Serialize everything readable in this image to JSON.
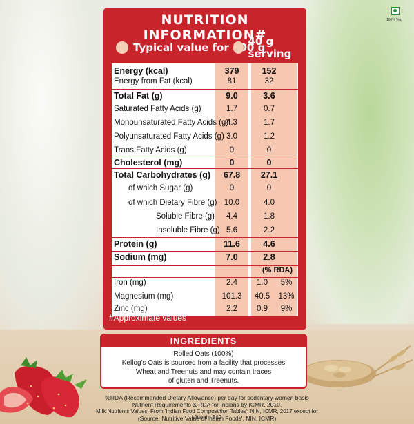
{
  "badge": {
    "veg_label": "100% Veg"
  },
  "panel": {
    "title": "NUTRITION INFORMATION#",
    "col1_header": "Typical value for 100 g",
    "col2_header": "40 g serving",
    "rows": [
      {
        "label": "Energy (kcal)",
        "v1": "379",
        "v2": "152",
        "bold": true
      },
      {
        "label": "Energy from Fat (kcal)",
        "v1": "81",
        "v2": "32",
        "bold": false
      },
      {
        "label": "Total Fat (g)",
        "v1": "9.0",
        "v2": "3.6",
        "bold": true
      },
      {
        "label": "Saturated Fatty Acids (g)",
        "v1": "1.7",
        "v2": "0.7",
        "bold": false
      },
      {
        "label": "Monounsaturated Fatty Acids (g)",
        "v1": "4.3",
        "v2": "1.7",
        "bold": false
      },
      {
        "label": "Polyunsaturated Fatty Acids (g)",
        "v1": "3.0",
        "v2": "1.2",
        "bold": false
      },
      {
        "label": "Trans Fatty Acids (g)",
        "v1": "0",
        "v2": "0",
        "bold": false
      },
      {
        "label": "Cholesterol (mg)",
        "v1": "0",
        "v2": "0",
        "bold": true
      },
      {
        "label": "Total Carbohydrates (g)",
        "v1": "67.8",
        "v2": "27.1",
        "bold": true
      },
      {
        "label": "of which Sugar (g)",
        "v1": "0",
        "v2": "0",
        "bold": false
      },
      {
        "label": "of which Dietary Fibre (g)",
        "v1": "10.0",
        "v2": "4.0",
        "bold": false
      },
      {
        "label": "Soluble Fibre (g)",
        "v1": "4.4",
        "v2": "1.8",
        "bold": false
      },
      {
        "label": "Insoluble Fibre (g)",
        "v1": "5.6",
        "v2": "2.2",
        "bold": false
      },
      {
        "label": "Protein (g)",
        "v1": "11.6",
        "v2": "4.6",
        "bold": true
      },
      {
        "label": "Sodium (mg)",
        "v1": "7.0",
        "v2": "2.8",
        "bold": true
      }
    ],
    "rda_header": "(% RDA)",
    "minerals": [
      {
        "label": "Iron (mg)",
        "v1": "2.4",
        "v2": "1.0",
        "rda": "5%"
      },
      {
        "label": "Magnesium (mg)",
        "v1": "101.3",
        "v2": "40.5",
        "rda": "13%"
      },
      {
        "label": "Zinc (mg)",
        "v1": "2.2",
        "v2": "0.9",
        "rda": "9%"
      }
    ],
    "approx_note": "#Approximate values"
  },
  "ingredients": {
    "title": "INGREDIENTS",
    "lines": [
      "Rolled Oats (100%)",
      "Kellog's Oats is sourced from a facility that processes",
      "Wheat and Treenuts and may contain traces",
      "of gluten and Treenuts."
    ]
  },
  "footnotes": [
    "%RDA (Recommended Dietary Allowance) per day for sedentary women basis",
    "Nutrient Requirements & RDA for Indians by ICMR, 2010.",
    "Milk Nutrients Values: From 'Indian Food Compostition Tables', NIN, ICMR, 2017 except for Vitamin B12",
    "(Source: Nutritive Value of Indian Foods', NIN, ICMR)"
  ],
  "colors": {
    "brand_red": "#c8242b",
    "shade": "#f6c7b1"
  }
}
